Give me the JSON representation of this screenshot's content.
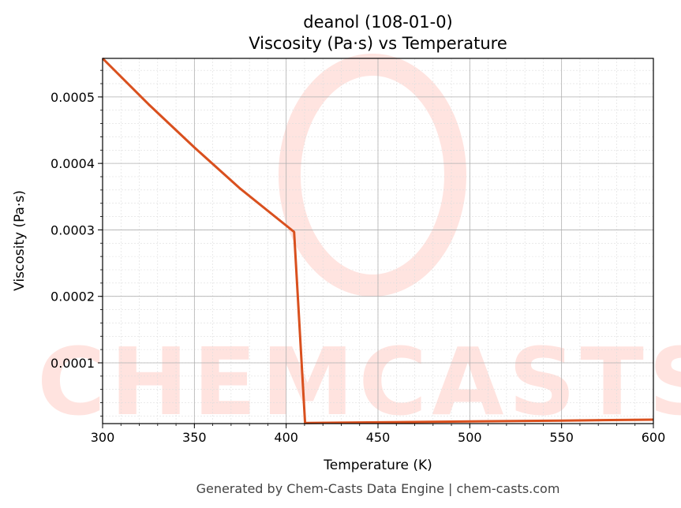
{
  "chart_data": {
    "type": "line",
    "title": "deanol (108-01-0)",
    "subtitle": "Viscosity (Pa·s) vs Temperature",
    "xlabel": "Temperature (K)",
    "ylabel": "Viscosity (Pa·s)",
    "xlim": [
      300,
      600
    ],
    "ylim": [
      8.6e-06,
      0.000558
    ],
    "xticks": [
      300,
      350,
      400,
      450,
      500,
      550,
      600
    ],
    "xtick_labels": [
      "300",
      "350",
      "400",
      "450",
      "500",
      "550",
      "600"
    ],
    "yticks": [
      0.0001,
      0.0002,
      0.0003,
      0.0004,
      0.0005
    ],
    "ytick_labels": [
      "0.0001",
      "0.0002",
      "0.0003",
      "0.0004",
      "0.0005"
    ],
    "grid": true,
    "series": [
      {
        "name": "Viscosity",
        "color": "#d9501e",
        "x": [
          300,
          325,
          350,
          375,
          404.3,
          410.3,
          450,
          500,
          550,
          600
        ],
        "y": [
          0.000558,
          0.000489,
          0.000424,
          0.000362,
          0.000297,
          9.5e-06,
          1.05e-05,
          1.18e-05,
          1.31e-05,
          1.45e-05
        ]
      }
    ]
  },
  "watermark": "CHEMCASTS",
  "footer": "Generated by Chem-Casts Data Engine | chem-casts.com"
}
